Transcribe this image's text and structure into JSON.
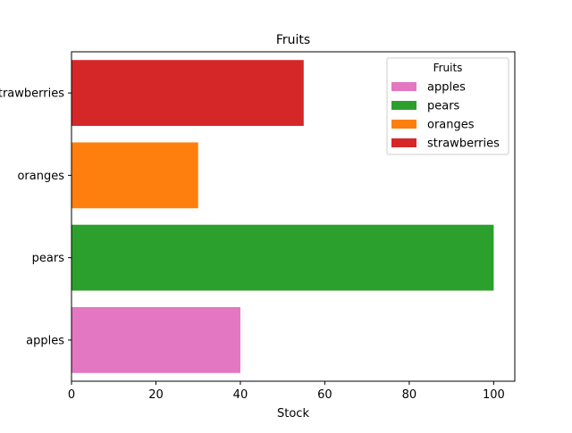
{
  "chart_data": {
    "type": "bar",
    "orientation": "horizontal",
    "title": "Fruits",
    "xlabel": "Stock",
    "ylabel": "",
    "categories": [
      "apples",
      "pears",
      "oranges",
      "strawberries"
    ],
    "values": [
      40,
      100,
      30,
      55
    ],
    "colors": [
      "#e377c2",
      "#2ca02c",
      "#ff7f0e",
      "#d62728"
    ],
    "xlim": [
      0,
      105
    ],
    "xticks": [
      0,
      20,
      40,
      60,
      80,
      100
    ],
    "xtick_labels": [
      "0",
      "20",
      "40",
      "60",
      "80",
      "100"
    ],
    "grid": false,
    "legend": {
      "title": "Fruits",
      "location": "top-right",
      "entries": [
        "apples",
        "pears",
        "oranges",
        "strawberries"
      ]
    }
  }
}
